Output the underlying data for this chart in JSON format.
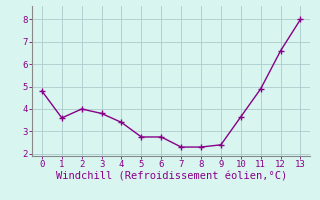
{
  "x": [
    0,
    1,
    2,
    3,
    4,
    5,
    6,
    7,
    8,
    9,
    10,
    11,
    12,
    13
  ],
  "y": [
    4.8,
    3.6,
    4.0,
    3.8,
    3.4,
    2.75,
    2.75,
    2.3,
    2.3,
    2.4,
    3.65,
    4.9,
    6.6,
    8.0
  ],
  "line_color": "#880088",
  "marker": "+",
  "marker_size": 4,
  "linewidth": 1.0,
  "xlabel": "Windchill (Refroidissement éolien,°C)",
  "xlabel_color": "#880088",
  "xlabel_fontsize": 7.5,
  "bg_color": "#d8f5f0",
  "grid_color": "#aacccc",
  "spine_color": "#888888",
  "xlim": [
    -0.5,
    13.5
  ],
  "ylim": [
    1.9,
    8.6
  ],
  "xticks": [
    0,
    1,
    2,
    3,
    4,
    5,
    6,
    7,
    8,
    9,
    10,
    11,
    12,
    13
  ],
  "yticks": [
    2,
    3,
    4,
    5,
    6,
    7,
    8
  ],
  "tick_fontsize": 6.5,
  "tick_color": "#880088"
}
